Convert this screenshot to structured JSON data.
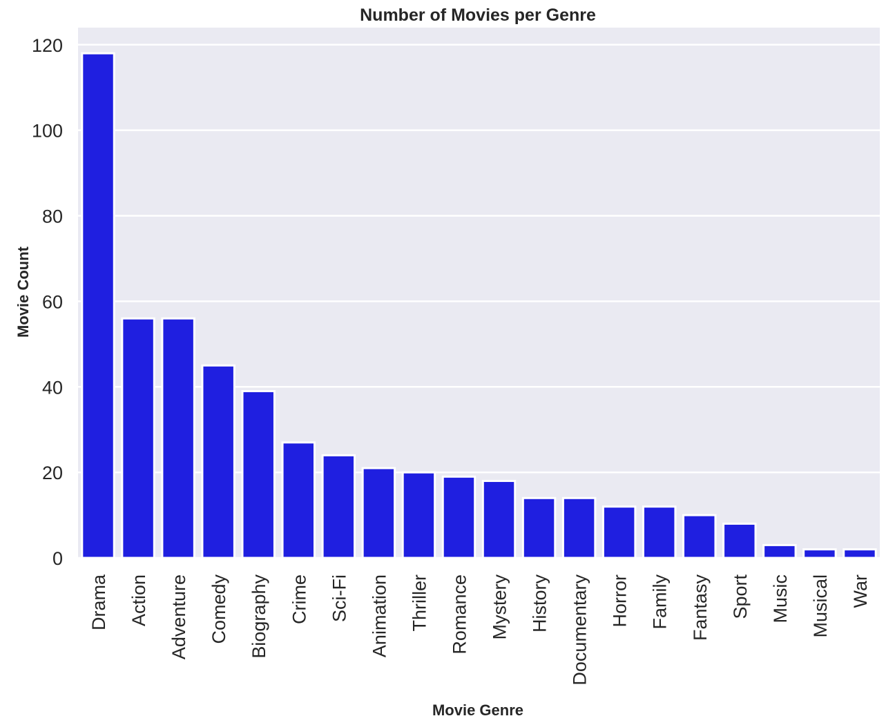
{
  "chart_data": {
    "type": "bar",
    "title": "Number of Movies per Genre",
    "xlabel": "Movie Genre",
    "ylabel": "Movie Count",
    "categories": [
      "Drama",
      "Action",
      "Adventure",
      "Comedy",
      "Biography",
      "Crime",
      "Sci-Fi",
      "Animation",
      "Thriller",
      "Romance",
      "Mystery",
      "History",
      "Documentary",
      "Horror",
      "Family",
      "Fantasy",
      "Sport",
      "Music",
      "Musical",
      "War"
    ],
    "values": [
      118,
      56,
      56,
      45,
      39,
      27,
      24,
      21,
      20,
      19,
      18,
      14,
      14,
      12,
      12,
      10,
      8,
      3,
      2,
      2
    ],
    "yticks": [
      0,
      20,
      40,
      60,
      80,
      100,
      120
    ],
    "ylim": [
      0,
      124
    ],
    "grid": true,
    "bar_color": "#1f1fe0",
    "background_color": "#eaeaf2",
    "grid_color": "#ffffff"
  }
}
